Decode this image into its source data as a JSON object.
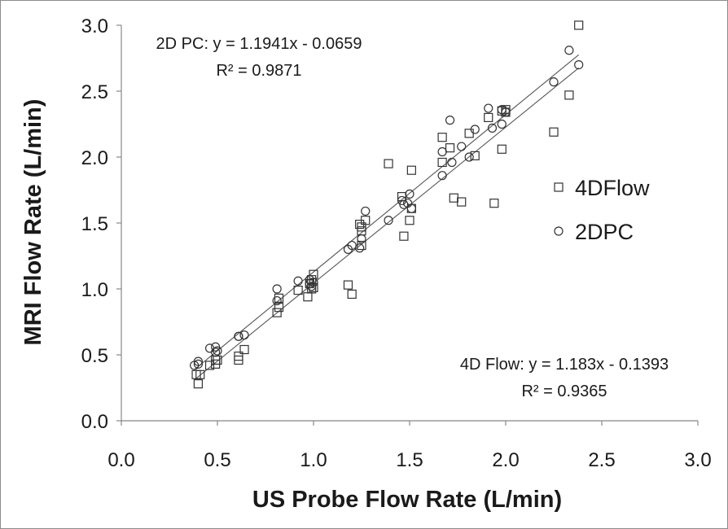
{
  "chart_data": {
    "type": "scatter",
    "title": "",
    "xlabel": "US Probe Flow Rate (L/min)",
    "ylabel": "MRI Flow Rate (L/min)",
    "xlim": [
      0,
      3
    ],
    "ylim": [
      0,
      3
    ],
    "x_ticks": [
      0.0,
      0.5,
      1.0,
      1.5,
      2.0,
      2.5,
      3.0
    ],
    "y_ticks": [
      0.0,
      0.5,
      1.0,
      1.5,
      2.0,
      2.5,
      3.0
    ],
    "x_tick_labels": [
      "0.0",
      "0.5",
      "1.0",
      "1.5",
      "2.0",
      "2.5",
      "3.0"
    ],
    "y_tick_labels": [
      "0.0",
      "0.5",
      "1.0",
      "1.5",
      "2.0",
      "2.5",
      "3.0"
    ],
    "grid": false,
    "legend_position": "right",
    "series": [
      {
        "name": "4DFlow",
        "marker": "square",
        "x": [
          0.39,
          0.41,
          0.4,
          0.46,
          0.49,
          0.49,
          0.5,
          0.61,
          0.61,
          0.64,
          0.81,
          0.82,
          0.82,
          0.92,
          0.97,
          0.98,
          0.99,
          0.99,
          1.0,
          1.0,
          1.18,
          1.2,
          1.24,
          1.25,
          1.25,
          1.25,
          1.27,
          1.39,
          1.46,
          1.47,
          1.5,
          1.51,
          1.51,
          1.67,
          1.67,
          1.71,
          1.73,
          1.77,
          1.81,
          1.84,
          1.91,
          1.94,
          1.98,
          1.98,
          2.0,
          2.0,
          2.25,
          2.33,
          2.38
        ],
        "y": [
          0.35,
          0.35,
          0.28,
          0.42,
          0.43,
          0.46,
          0.46,
          0.46,
          0.49,
          0.54,
          0.82,
          0.86,
          0.93,
          0.99,
          0.94,
          1.04,
          1.07,
          1.0,
          1.01,
          1.11,
          1.03,
          0.96,
          1.49,
          1.47,
          1.33,
          1.44,
          1.52,
          1.95,
          1.7,
          1.4,
          1.52,
          1.9,
          1.61,
          2.15,
          1.96,
          2.07,
          1.69,
          1.66,
          2.18,
          2.01,
          2.3,
          1.65,
          2.06,
          2.35,
          2.34,
          2.36,
          2.19,
          2.47,
          3.0
        ]
      },
      {
        "name": "2DPC",
        "marker": "circle",
        "x": [
          0.38,
          0.4,
          0.4,
          0.46,
          0.49,
          0.49,
          0.5,
          0.61,
          0.61,
          0.64,
          0.81,
          0.81,
          0.92,
          0.98,
          0.98,
          0.99,
          1.0,
          1.18,
          1.2,
          1.24,
          1.25,
          1.27,
          1.39,
          1.46,
          1.47,
          1.49,
          1.5,
          1.51,
          1.67,
          1.67,
          1.71,
          1.72,
          1.77,
          1.81,
          1.84,
          1.91,
          1.93,
          1.98,
          1.98,
          2.0,
          2.25,
          2.33,
          2.38
        ],
        "y": [
          0.42,
          0.45,
          0.43,
          0.55,
          0.52,
          0.56,
          0.53,
          0.64,
          0.64,
          0.65,
          0.91,
          1.0,
          1.06,
          1.04,
          1.07,
          1.02,
          1.05,
          1.3,
          1.33,
          1.31,
          1.38,
          1.59,
          1.52,
          1.67,
          1.64,
          1.65,
          1.72,
          1.61,
          1.86,
          2.04,
          2.28,
          1.96,
          2.08,
          2.0,
          2.21,
          2.37,
          2.22,
          2.25,
          2.36,
          2.34,
          2.57,
          2.81,
          2.7
        ]
      }
    ],
    "trendlines": [
      {
        "series": "2DPC",
        "slope": 1.1941,
        "intercept": -0.0659,
        "x_range": [
          0.38,
          2.38
        ]
      },
      {
        "series": "4DFlow",
        "slope": 1.183,
        "intercept": -0.1393,
        "x_range": [
          0.38,
          2.38
        ]
      }
    ],
    "annotations": {
      "pc_equation": "2D PC: y = 1.1941x - 0.0659",
      "pc_r2": "R² = 0.9871",
      "flow_equation": "4D Flow: y = 1.183x - 0.1393",
      "flow_r2": "R² = 0.9365"
    },
    "colors": {
      "marker": "#333333",
      "axis": "#888888",
      "text": "#1a1a1a",
      "background": "#ffffff"
    }
  }
}
